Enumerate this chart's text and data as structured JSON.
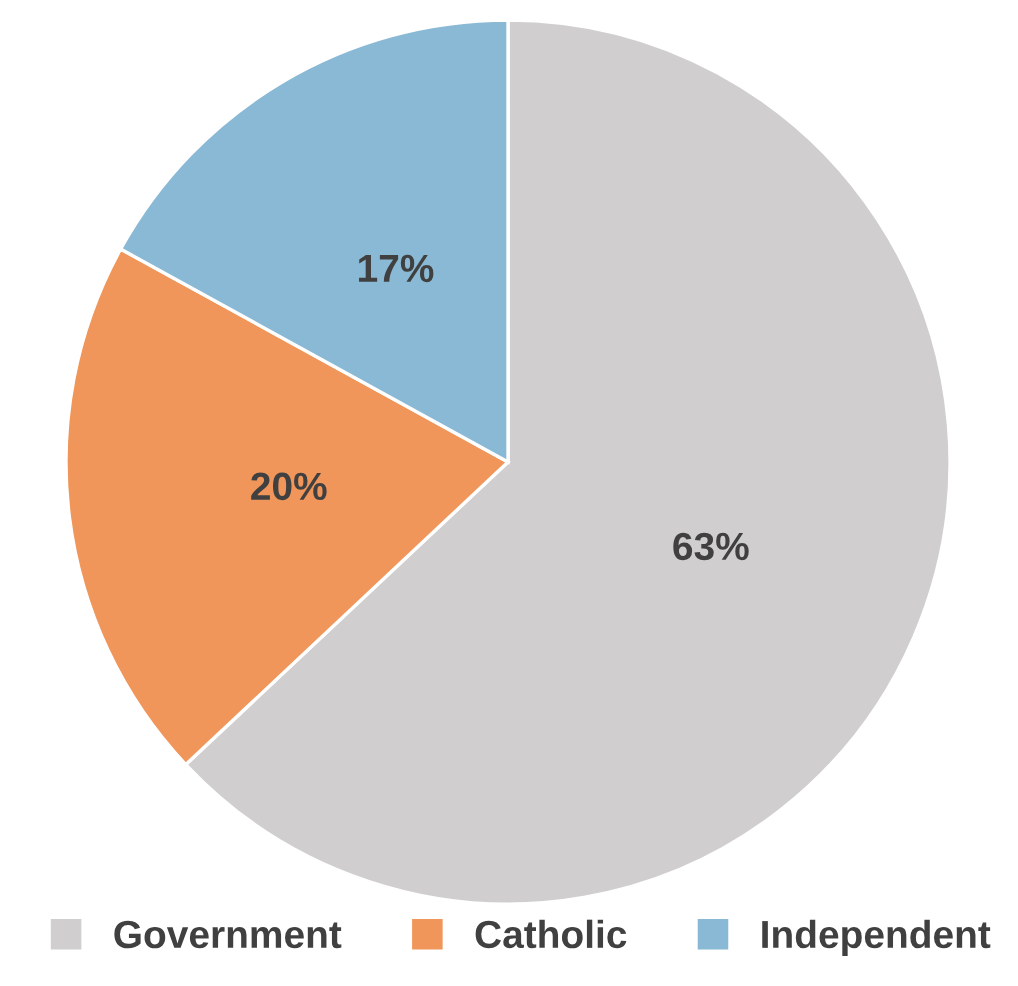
{
  "chart_data": {
    "type": "pie",
    "categories": [
      "Government",
      "Catholic",
      "Independent"
    ],
    "values": [
      63,
      20,
      17
    ],
    "colors": [
      "#d0cece",
      "#f0965a",
      "#8ab9d5"
    ],
    "value_labels": [
      "63%",
      "20%",
      "17%"
    ],
    "legend": "bottom"
  }
}
